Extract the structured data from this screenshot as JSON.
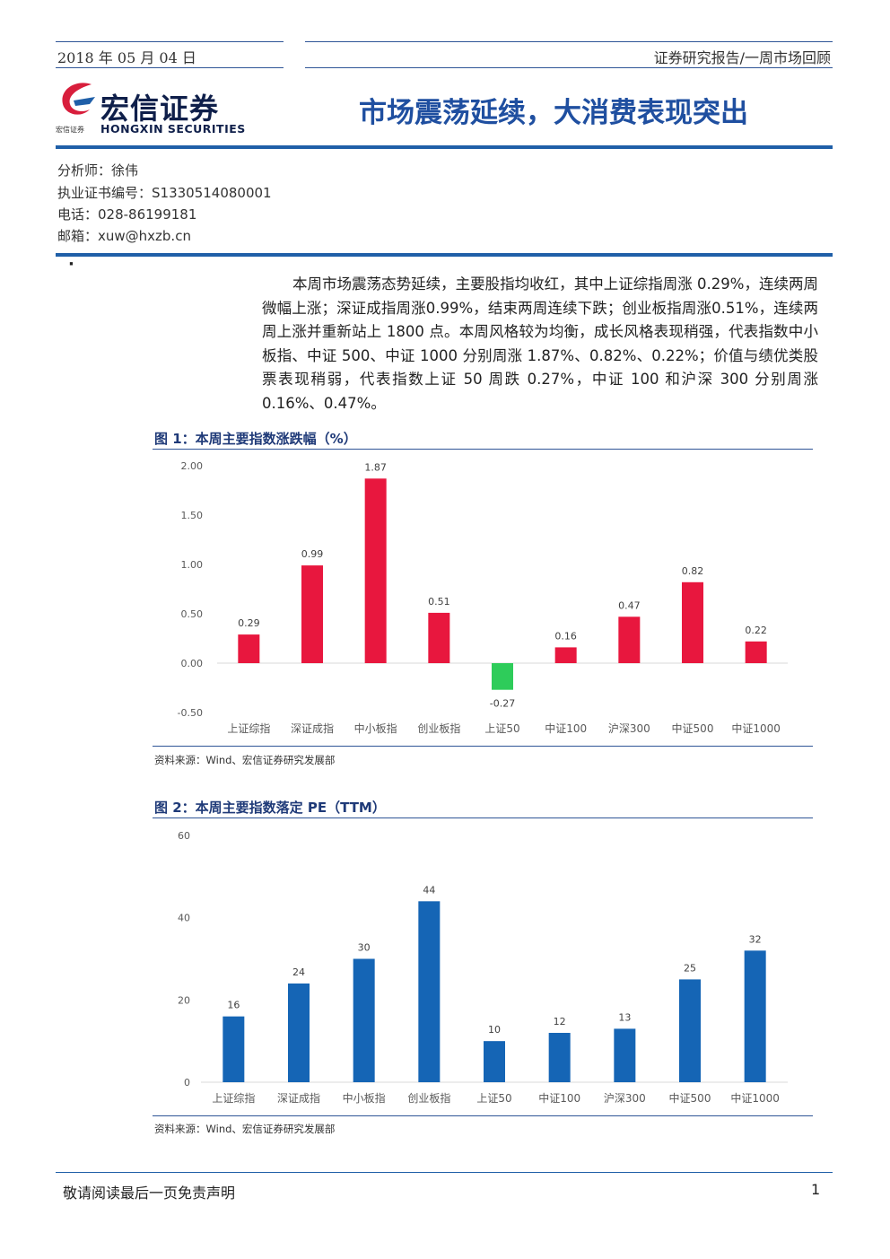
{
  "header": {
    "date": "2018 年 05 月 04 日",
    "category": "证券研究报告/一周市场回顾",
    "logo_cn": "宏信证券",
    "logo_en": "HONGXIN SECURITIES",
    "logo_small": "宏信证券",
    "title": "市场震荡延续，大消费表现突出"
  },
  "analyst": {
    "name": "分析师：徐伟",
    "cert": "执业证书编号：S1330514080001",
    "phone": "电话：028-86199181",
    "email": "邮箱：xuw@hxzb.cn"
  },
  "bullet": "·",
  "body": {
    "paragraph": "本周市场震荡态势延续，主要股指均收红，其中上证综指周涨 0.29%，连续两周微幅上涨；深证成指周涨0.99%，结束两周连续下跌；创业板指周涨0.51%，连续两周上涨并重新站上 1800 点。本周风格较为均衡，成长风格表现稍强，代表指数中小板指、中证 500、中证 1000 分别周涨 1.87%、0.82%、0.22%；价值与绩优类股票表现稍弱，代表指数上证 50 周跌 0.27%，中证 100 和沪深 300 分别周涨 0.16%、0.47%。"
  },
  "figure1": {
    "title": "图 1：本周主要指数涨跌幅（%）",
    "source": "资料来源：Wind、宏信证券研究发展部"
  },
  "figure2": {
    "title": "图 2：本周主要指数落定 PE（TTM）",
    "source": "资料来源：Wind、宏信证券研究发展部"
  },
  "footer": {
    "disclaimer": "敬请阅读最后一页免责声明",
    "page": "1"
  },
  "colors": {
    "positive": "#e8173e",
    "negative": "#2ecc5a",
    "pe_bar": "#1565b5",
    "accent": "#1f5fa8"
  },
  "chart_data": [
    {
      "type": "bar",
      "title": "本周主要指数涨跌幅（%）",
      "categories": [
        "上证综指",
        "深证成指",
        "中小板指",
        "创业板指",
        "上证50",
        "中证100",
        "沪深300",
        "中证500",
        "中证1000"
      ],
      "values": [
        0.29,
        0.99,
        1.87,
        0.51,
        -0.27,
        0.16,
        0.47,
        0.82,
        0.22
      ],
      "data_labels": [
        "0.29",
        "0.99",
        "1.87",
        "0.51",
        "-0.27",
        "0.16",
        "0.47",
        "0.82",
        "0.22"
      ],
      "yticks": [
        "2.00",
        "1.50",
        "1.00",
        "0.50",
        "0.00",
        "-0.50"
      ],
      "ylim": [
        -0.5,
        2.0
      ],
      "grid": false,
      "legend": "none"
    },
    {
      "type": "bar",
      "title": "本周主要指数落定 PE（TTM）",
      "categories": [
        "上证综指",
        "深证成指",
        "中小板指",
        "创业板指",
        "上证50",
        "中证100",
        "沪深300",
        "中证500",
        "中证1000"
      ],
      "values": [
        16,
        24,
        30,
        44,
        10,
        12,
        13,
        25,
        32
      ],
      "data_labels": [
        "16",
        "24",
        "30",
        "44",
        "10",
        "12",
        "13",
        "25",
        "32"
      ],
      "yticks": [
        "60",
        "40",
        "20",
        "0"
      ],
      "ylim": [
        0,
        60
      ],
      "grid": false,
      "legend": "none"
    }
  ]
}
